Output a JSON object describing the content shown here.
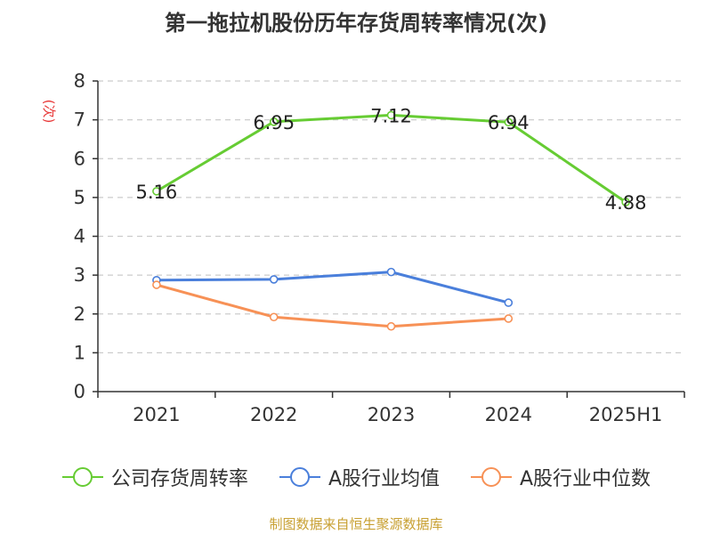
{
  "title": "第一拖拉机股份历年存货周转率情况(次)",
  "source": "制图数据来自恒生聚源数据库",
  "colors": {
    "company": "#66cc33",
    "industry_avg": "#4a7fdb",
    "industry_median": "#f79156",
    "grid": "#cccccc",
    "axis": "#333333",
    "unit": "#e83a3a"
  },
  "chart_data": {
    "type": "line",
    "categories": [
      "2021",
      "2022",
      "2023",
      "2024",
      "2025H1"
    ],
    "ylabel": "(次)",
    "ylim": [
      0,
      8
    ],
    "yticks": [
      "0",
      "1",
      "2",
      "3",
      "4",
      "5",
      "6",
      "7",
      "8"
    ],
    "grid": true,
    "legend_position": "bottom",
    "series": [
      {
        "name": "公司存货周转率",
        "values": [
          5.16,
          6.95,
          7.12,
          6.94,
          4.88
        ],
        "labels": [
          "5.16",
          "6.95",
          "7.12",
          "6.94",
          "4.88"
        ]
      },
      {
        "name": "A股行业均值",
        "values": [
          2.87,
          2.89,
          3.08,
          2.29,
          null
        ]
      },
      {
        "name": "A股行业中位数",
        "values": [
          2.75,
          1.92,
          1.68,
          1.88,
          null
        ]
      }
    ]
  }
}
